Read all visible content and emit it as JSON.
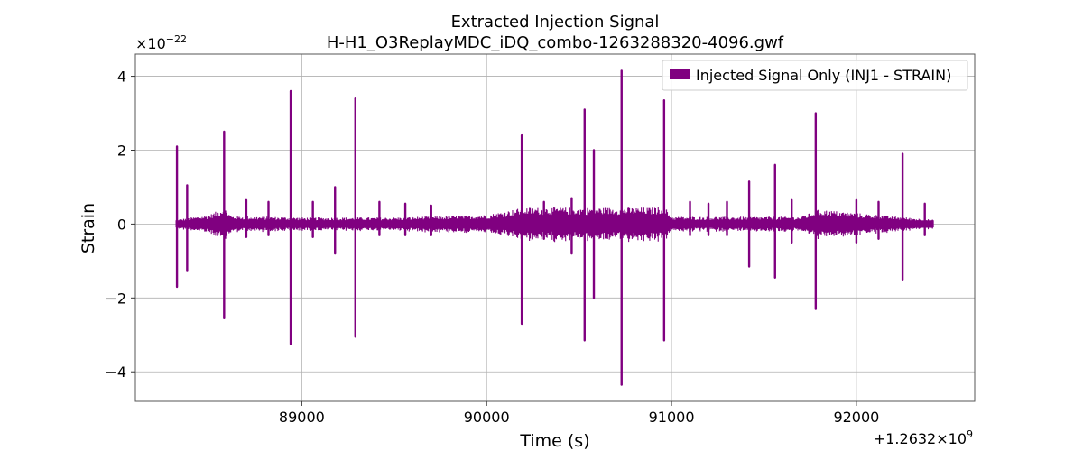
{
  "chart_data": {
    "type": "line",
    "title": "Extracted Injection Signal",
    "subtitle": "H-H1_O3ReplayMDC_iDQ_combo-1263288320-4096.gwf",
    "xlabel": "Time (s)",
    "ylabel": "Strain",
    "x_offset_label": "+1.2632×10",
    "x_offset_exponent": "9",
    "y_scale_label": "×10",
    "y_scale_exponent": "−22",
    "xlim": [
      88100,
      92640
    ],
    "ylim": [
      -4.8,
      4.6
    ],
    "x_ticks": [
      89000,
      90000,
      91000,
      92000
    ],
    "x_tick_labels": [
      "89000",
      "90000",
      "91000",
      "92000"
    ],
    "y_ticks": [
      -4,
      -2,
      0,
      2,
      4
    ],
    "y_tick_labels": [
      "−4",
      "−2",
      "0",
      "2",
      "4"
    ],
    "grid": true,
    "legend_position": "top-right",
    "series": [
      {
        "name": "Injected Signal Only (INJ1 - STRAIN)",
        "color": "#800080",
        "x_range": [
          88320,
          92416
        ],
        "envelope": [
          {
            "x": 88320,
            "amp": 0.12
          },
          {
            "x": 88500,
            "amp": 0.25
          },
          {
            "x": 88580,
            "amp": 0.45
          },
          {
            "x": 88620,
            "amp": 0.22
          },
          {
            "x": 89000,
            "amp": 0.18
          },
          {
            "x": 89500,
            "amp": 0.18
          },
          {
            "x": 90000,
            "amp": 0.25
          },
          {
            "x": 90200,
            "amp": 0.45
          },
          {
            "x": 90900,
            "amp": 0.45
          },
          {
            "x": 90960,
            "amp": 0.5
          },
          {
            "x": 91000,
            "amp": 0.2
          },
          {
            "x": 91700,
            "amp": 0.2
          },
          {
            "x": 91800,
            "amp": 0.4
          },
          {
            "x": 92000,
            "amp": 0.3
          },
          {
            "x": 92416,
            "amp": 0.12
          }
        ],
        "spikes": [
          {
            "x": 88325,
            "up": 2.1,
            "down": -1.7
          },
          {
            "x": 88380,
            "up": 1.05,
            "down": -1.25
          },
          {
            "x": 88580,
            "up": 2.5,
            "down": -2.55
          },
          {
            "x": 88700,
            "up": 0.65,
            "down": -0.35
          },
          {
            "x": 88820,
            "up": 0.6,
            "down": -0.3
          },
          {
            "x": 88940,
            "up": 3.6,
            "down": -3.25
          },
          {
            "x": 89060,
            "up": 0.6,
            "down": -0.35
          },
          {
            "x": 89180,
            "up": 1.0,
            "down": -0.8
          },
          {
            "x": 89290,
            "up": 3.4,
            "down": -3.05
          },
          {
            "x": 89420,
            "up": 0.6,
            "down": -0.3
          },
          {
            "x": 89560,
            "up": 0.55,
            "down": -0.3
          },
          {
            "x": 89700,
            "up": 0.5,
            "down": -0.3
          },
          {
            "x": 90190,
            "up": 2.4,
            "down": -2.7
          },
          {
            "x": 90310,
            "up": 0.6,
            "down": -0.4
          },
          {
            "x": 90460,
            "up": 0.7,
            "down": -0.8
          },
          {
            "x": 90530,
            "up": 3.1,
            "down": -3.15
          },
          {
            "x": 90580,
            "up": 2.0,
            "down": -2.0
          },
          {
            "x": 90730,
            "up": 4.15,
            "down": -4.35
          },
          {
            "x": 90960,
            "up": 3.35,
            "down": -3.15
          },
          {
            "x": 91100,
            "up": 0.6,
            "down": -0.3
          },
          {
            "x": 91200,
            "up": 0.55,
            "down": -0.3
          },
          {
            "x": 91300,
            "up": 0.6,
            "down": -0.3
          },
          {
            "x": 91420,
            "up": 1.15,
            "down": -1.15
          },
          {
            "x": 91560,
            "up": 1.6,
            "down": -1.45
          },
          {
            "x": 91650,
            "up": 0.65,
            "down": -0.5
          },
          {
            "x": 91780,
            "up": 3.0,
            "down": -2.3
          },
          {
            "x": 92000,
            "up": 0.65,
            "down": -0.5
          },
          {
            "x": 92120,
            "up": 0.6,
            "down": -0.4
          },
          {
            "x": 92250,
            "up": 1.9,
            "down": -1.5
          },
          {
            "x": 92370,
            "up": 0.55,
            "down": -0.3
          }
        ]
      }
    ]
  }
}
